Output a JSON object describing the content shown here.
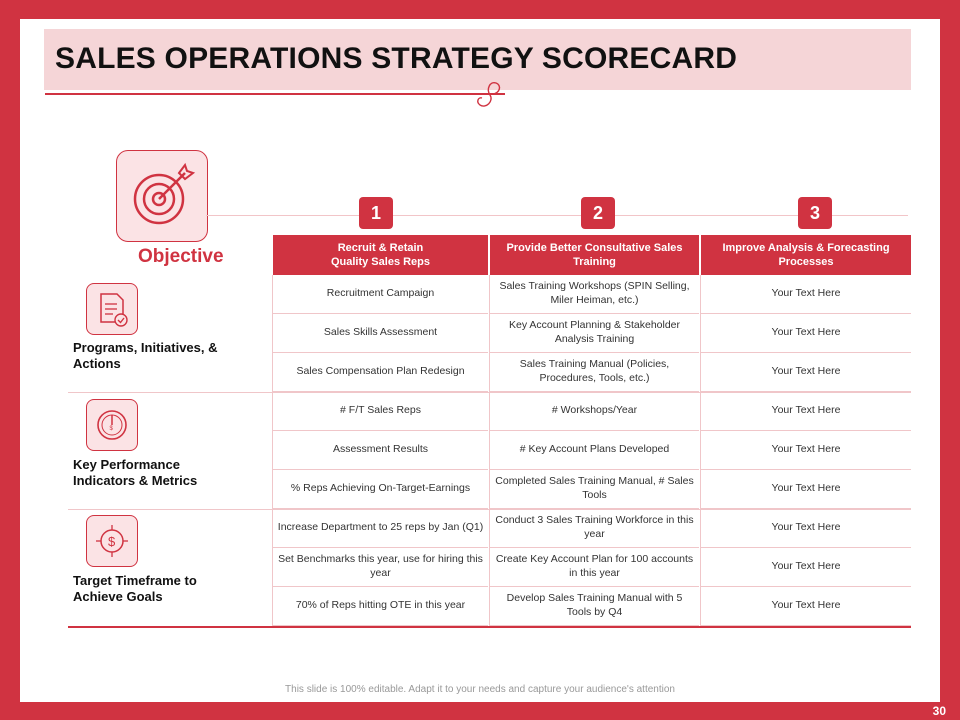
{
  "title": "SALES OPERATIONS STRATEGY SCORECARD",
  "objective_label": "Objective",
  "columns": [
    {
      "number": "1",
      "header": "Recruit & Retain Quality Sales Reps"
    },
    {
      "number": "2",
      "header": "Provide Better Consultative Sales Training"
    },
    {
      "number": "3",
      "header": "Improve Analysis & Forecasting Processes"
    }
  ],
  "sections": [
    {
      "label": "Programs, Initiatives, & Actions",
      "icon": "document-check-icon",
      "rows": [
        [
          "Recruitment Campaign",
          "Sales Training Workshops (SPIN Selling, Miler Heiman, etc.)",
          "Your Text Here"
        ],
        [
          "Sales Skills Assessment",
          "Key Account Planning & Stakeholder Analysis Training",
          "Your Text Here"
        ],
        [
          "Sales Compensation Plan Redesign",
          "Sales Training Manual (Policies, Procedures, Tools, etc.)",
          "Your Text Here"
        ]
      ]
    },
    {
      "label": "Key Performance Indicators & Metrics",
      "icon": "gauge-icon",
      "rows": [
        [
          "# F/T Sales Reps",
          "# Workshops/Year",
          "Your Text Here"
        ],
        [
          "Assessment Results",
          "# Key Account Plans Developed",
          "Your Text Here"
        ],
        [
          "% Reps Achieving On-Target-Earnings",
          "Completed Sales Training Manual, # Sales Tools",
          "Your Text Here"
        ]
      ]
    },
    {
      "label": "Target Timeframe to Achieve Goals",
      "icon": "dollar-target-icon",
      "rows": [
        [
          "Increase Department to 25 reps by Jan (Q1)",
          "Conduct 3 Sales Training Workforce in this year",
          "Your Text Here"
        ],
        [
          "Set Benchmarks this year, use for hiring this year",
          "Create Key Account Plan for 100 accounts in this  year",
          "Your Text Here"
        ],
        [
          "70% of Reps hitting OTE in this year",
          "Develop Sales Training Manual with 5 Tools by Q4",
          "Your Text Here"
        ]
      ]
    }
  ],
  "footer": "This slide is 100% editable. Adapt it to your needs and capture your audience's attention",
  "page_number": "30",
  "colors": {
    "accent": "#d03341",
    "title_band": "#f5d5d7",
    "icon_bg": "#fbe3e5"
  }
}
